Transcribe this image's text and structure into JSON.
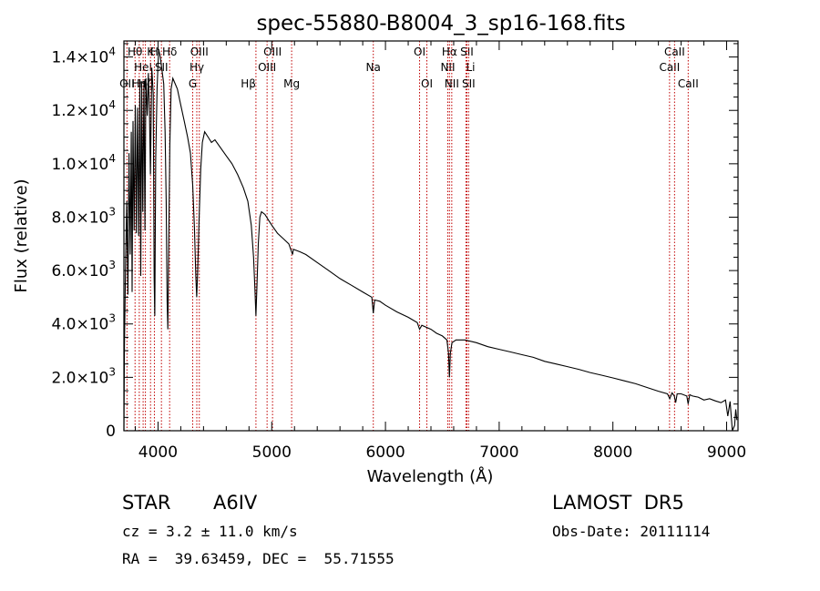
{
  "chart_data": {
    "type": "line",
    "title": "spec-55880-B8004_3_sp16-168.fits",
    "xlabel": "Wavelength (Å)",
    "ylabel": "Flux (relative)",
    "xlim": [
      3700,
      9100
    ],
    "ylim": [
      0,
      14600
    ],
    "xticks": [
      4000,
      5000,
      6000,
      7000,
      8000,
      9000
    ],
    "yticks": [
      {
        "value": 0,
        "mant": "0",
        "exp": ""
      },
      {
        "value": 2000,
        "mant": "2.0×10",
        "exp": "3"
      },
      {
        "value": 4000,
        "mant": "4.0×10",
        "exp": "3"
      },
      {
        "value": 6000,
        "mant": "6.0×10",
        "exp": "3"
      },
      {
        "value": 8000,
        "mant": "8.0×10",
        "exp": "3"
      },
      {
        "value": 10000,
        "mant": "1.0×10",
        "exp": "4"
      },
      {
        "value": 12000,
        "mant": "1.2×10",
        "exp": "4"
      },
      {
        "value": 14000,
        "mant": "1.4×10",
        "exp": "4"
      }
    ],
    "grid": false,
    "line_color": "#000000",
    "marker_color": "#c00000",
    "series": [
      {
        "values": [
          [
            3700,
            0
          ],
          [
            3705,
            3200
          ],
          [
            3715,
            6400
          ],
          [
            3725,
            8600
          ],
          [
            3735,
            5100
          ],
          [
            3745,
            10400
          ],
          [
            3755,
            6600
          ],
          [
            3765,
            11200
          ],
          [
            3772,
            5200
          ],
          [
            3780,
            11600
          ],
          [
            3790,
            7500
          ],
          [
            3800,
            12200
          ],
          [
            3810,
            7400
          ],
          [
            3820,
            12100
          ],
          [
            3830,
            7300
          ],
          [
            3840,
            12900
          ],
          [
            3848,
            5800
          ],
          [
            3856,
            13000
          ],
          [
            3866,
            8200
          ],
          [
            3876,
            13100
          ],
          [
            3885,
            7500
          ],
          [
            3893,
            13200
          ],
          [
            3905,
            11800
          ],
          [
            3915,
            13400
          ],
          [
            3925,
            11900
          ],
          [
            3933,
            9600
          ],
          [
            3945,
            13600
          ],
          [
            3958,
            12600
          ],
          [
            3966,
            5700
          ],
          [
            3972,
            4300
          ],
          [
            3980,
            10200
          ],
          [
            3992,
            12800
          ],
          [
            4005,
            14300
          ],
          [
            4020,
            14000
          ],
          [
            4035,
            13500
          ],
          [
            4050,
            13000
          ],
          [
            4062,
            11200
          ],
          [
            4072,
            8600
          ],
          [
            4080,
            4900
          ],
          [
            4086,
            3800
          ],
          [
            4094,
            7000
          ],
          [
            4104,
            10700
          ],
          [
            4115,
            12800
          ],
          [
            4130,
            13200
          ],
          [
            4150,
            13000
          ],
          [
            4170,
            12800
          ],
          [
            4200,
            12200
          ],
          [
            4230,
            11600
          ],
          [
            4260,
            11000
          ],
          [
            4285,
            10400
          ],
          [
            4305,
            9200
          ],
          [
            4320,
            7600
          ],
          [
            4332,
            5800
          ],
          [
            4340,
            5000
          ],
          [
            4348,
            5900
          ],
          [
            4360,
            7800
          ],
          [
            4375,
            9800
          ],
          [
            4390,
            10800
          ],
          [
            4410,
            11200
          ],
          [
            4440,
            11000
          ],
          [
            4470,
            10800
          ],
          [
            4500,
            10900
          ],
          [
            4550,
            10600
          ],
          [
            4600,
            10300
          ],
          [
            4650,
            10000
          ],
          [
            4700,
            9600
          ],
          [
            4750,
            9100
          ],
          [
            4790,
            8600
          ],
          [
            4820,
            7700
          ],
          [
            4840,
            6500
          ],
          [
            4852,
            5300
          ],
          [
            4861,
            4300
          ],
          [
            4870,
            5400
          ],
          [
            4882,
            7000
          ],
          [
            4895,
            8000
          ],
          [
            4910,
            8200
          ],
          [
            4940,
            8100
          ],
          [
            4970,
            7900
          ],
          [
            5000,
            7700
          ],
          [
            5050,
            7400
          ],
          [
            5100,
            7200
          ],
          [
            5150,
            7000
          ],
          [
            5183,
            6600
          ],
          [
            5190,
            6800
          ],
          [
            5250,
            6700
          ],
          [
            5300,
            6600
          ],
          [
            5400,
            6300
          ],
          [
            5500,
            6000
          ],
          [
            5600,
            5700
          ],
          [
            5700,
            5450
          ],
          [
            5800,
            5200
          ],
          [
            5880,
            5000
          ],
          [
            5893,
            4400
          ],
          [
            5905,
            4900
          ],
          [
            5950,
            4850
          ],
          [
            6000,
            4700
          ],
          [
            6100,
            4450
          ],
          [
            6200,
            4250
          ],
          [
            6280,
            4050
          ],
          [
            6300,
            3800
          ],
          [
            6320,
            3950
          ],
          [
            6400,
            3800
          ],
          [
            6450,
            3650
          ],
          [
            6500,
            3550
          ],
          [
            6540,
            3400
          ],
          [
            6555,
            2900
          ],
          [
            6563,
            2000
          ],
          [
            6571,
            2900
          ],
          [
            6585,
            3300
          ],
          [
            6620,
            3400
          ],
          [
            6700,
            3400
          ],
          [
            6800,
            3300
          ],
          [
            6900,
            3150
          ],
          [
            7000,
            3050
          ],
          [
            7100,
            2950
          ],
          [
            7200,
            2850
          ],
          [
            7300,
            2750
          ],
          [
            7400,
            2600
          ],
          [
            7500,
            2500
          ],
          [
            7600,
            2400
          ],
          [
            7700,
            2300
          ],
          [
            7800,
            2180
          ],
          [
            7900,
            2080
          ],
          [
            8000,
            1980
          ],
          [
            8100,
            1870
          ],
          [
            8200,
            1760
          ],
          [
            8300,
            1620
          ],
          [
            8400,
            1480
          ],
          [
            8480,
            1380
          ],
          [
            8500,
            1200
          ],
          [
            8520,
            1420
          ],
          [
            8540,
            1300
          ],
          [
            8552,
            1050
          ],
          [
            8565,
            1380
          ],
          [
            8600,
            1380
          ],
          [
            8650,
            1300
          ],
          [
            8662,
            1000
          ],
          [
            8675,
            1350
          ],
          [
            8700,
            1300
          ],
          [
            8750,
            1260
          ],
          [
            8800,
            1150
          ],
          [
            8850,
            1200
          ],
          [
            8900,
            1120
          ],
          [
            8950,
            1050
          ],
          [
            8990,
            1150
          ],
          [
            9010,
            550
          ],
          [
            9030,
            1100
          ],
          [
            9050,
            0
          ],
          [
            9070,
            200
          ],
          [
            9080,
            800
          ],
          [
            9090,
            400
          ]
        ]
      }
    ],
    "line_markers": [
      {
        "x": 3727,
        "label": "OII",
        "row": 3,
        "align": "middle"
      },
      {
        "x": 3798,
        "label": "Hθ",
        "row": 1,
        "align": "middle"
      },
      {
        "x": 3835,
        "label": "Hη",
        "row": 3,
        "align": "middle"
      },
      {
        "x": 3869,
        "label": "HeI",
        "row": 2,
        "align": "middle"
      },
      {
        "x": 3889,
        "label": "Hζ",
        "row": 3,
        "align": "middle"
      },
      {
        "x": 3934,
        "label": "K",
        "row": 1,
        "align": "middle"
      },
      {
        "x": 3968,
        "label": "H",
        "row": 1,
        "align": "middle"
      },
      {
        "x": 4030,
        "label": "SII",
        "row": 2,
        "align": "middle"
      },
      {
        "x": 4102,
        "label": "Hδ",
        "row": 1,
        "align": "middle"
      },
      {
        "x": 4305,
        "label": "G",
        "row": 3,
        "align": "middle"
      },
      {
        "x": 4341,
        "label": "Hγ",
        "row": 2,
        "align": "middle"
      },
      {
        "x": 4363,
        "label": "OIII",
        "row": 1,
        "align": "middle"
      },
      {
        "x": 4861,
        "label": "Hβ",
        "row": 3,
        "align": "end"
      },
      {
        "x": 4959,
        "label": "OIII",
        "row": 2,
        "align": "middle"
      },
      {
        "x": 5007,
        "label": "OIII",
        "row": 1,
        "align": "middle"
      },
      {
        "x": 5175,
        "label": "Mg",
        "row": 3,
        "align": "middle"
      },
      {
        "x": 5893,
        "label": "Na",
        "row": 2,
        "align": "middle"
      },
      {
        "x": 6300,
        "label": "OI",
        "row": 1,
        "align": "middle"
      },
      {
        "x": 6364,
        "label": "OI",
        "row": 3,
        "align": "middle"
      },
      {
        "x": 6548,
        "label": "NII",
        "row": 2,
        "align": "middle"
      },
      {
        "x": 6563,
        "label": "Hα",
        "row": 1,
        "align": "middle"
      },
      {
        "x": 6583,
        "label": "NII",
        "row": 3,
        "align": "middle"
      },
      {
        "x": 6708,
        "label": "Li",
        "row": 2,
        "align": "start"
      },
      {
        "x": 6716,
        "label": "SII",
        "row": 1,
        "align": "middle"
      },
      {
        "x": 6731,
        "label": "SII",
        "row": 3,
        "align": "middle"
      },
      {
        "x": 8498,
        "label": "CaII",
        "row": 2,
        "align": "middle"
      },
      {
        "x": 8542,
        "label": "CaII",
        "row": 1,
        "align": "middle"
      },
      {
        "x": 8662,
        "label": "CaII",
        "row": 3,
        "align": "middle"
      }
    ]
  },
  "info": {
    "object_class": "STAR",
    "subclass": "A6IV",
    "survey": "LAMOST  DR5",
    "redshift": "cz = 3.2 ± 11.0 km/s",
    "obs_date": "Obs-Date: 20111114",
    "coords": "RA =  39.63459, DEC =  55.71555"
  }
}
